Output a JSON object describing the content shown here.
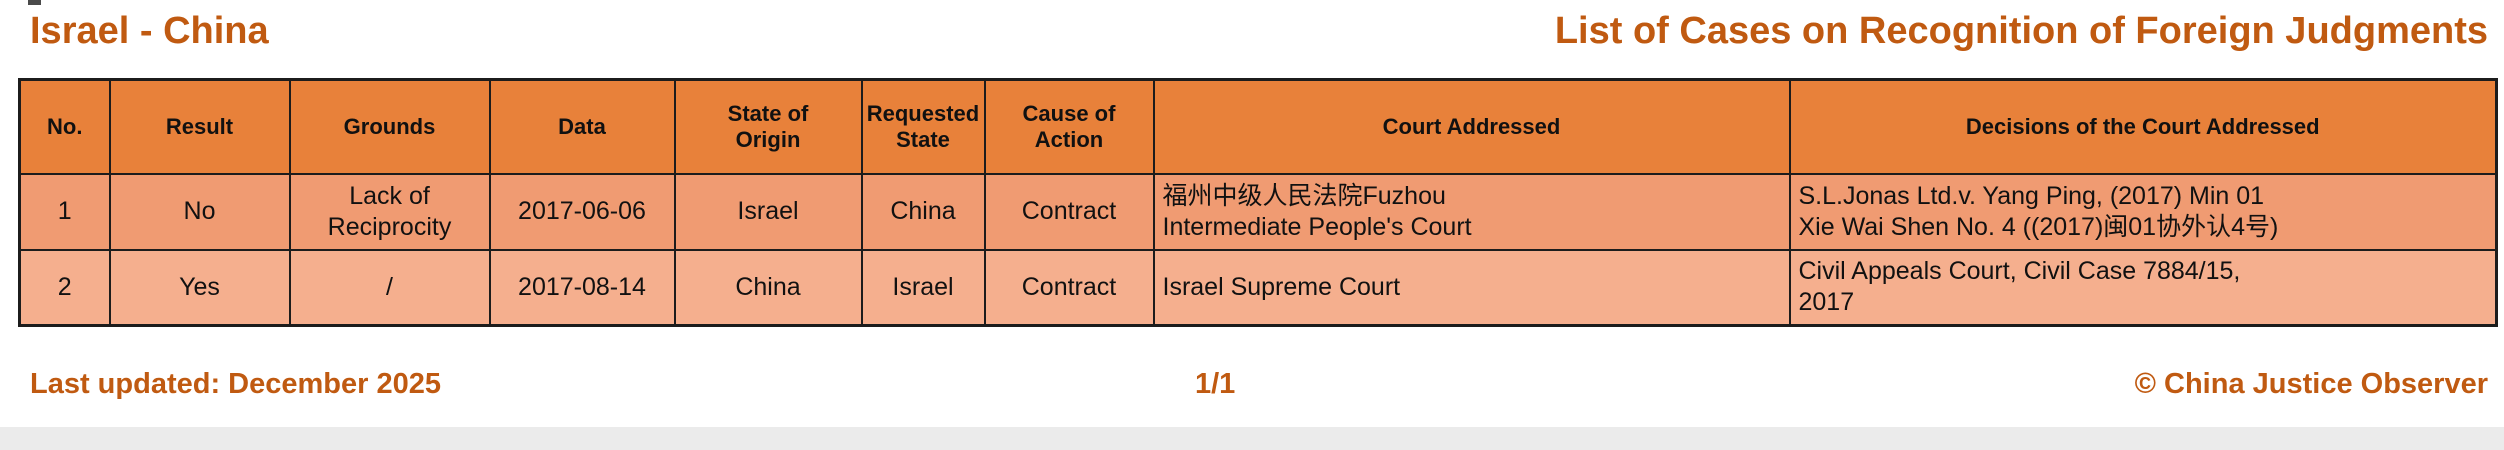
{
  "page": {
    "title_left": "Israel - China",
    "title_right": "List of Cases on Recognition of Foreign Judgments"
  },
  "table": {
    "columns": [
      "No.",
      "Result",
      "Grounds",
      "Data",
      "State of\nOrigin",
      "Requested\nState",
      "Cause of Action",
      "Court Addressed",
      "Decisions of the Court Addressed"
    ],
    "rows": [
      [
        "1",
        "No",
        "Lack of\nReciprocity",
        "2017-06-06",
        "Israel",
        "China",
        "Contract",
        "福州中级人民法院Fuzhou\nIntermediate People's Court",
        "S.L.Jonas Ltd.v. Yang Ping, (2017) Min 01\nXie Wai Shen No. 4 ((2017)闽01协外认4号)"
      ],
      [
        "2",
        "Yes",
        "/",
        "2017-08-14",
        "China",
        "Israel",
        "Contract",
        "Israel Supreme Court",
        "Civil Appeals Court, Civil Case 7884/15,\n2017"
      ]
    ]
  },
  "footer": {
    "last_updated": "Last updated: December 2025",
    "page_number": "1/1",
    "copyright": "© China Justice Observer"
  },
  "colors": {
    "header_bg": "#E8813A",
    "row_bg_1": "#F09B72",
    "row_bg_2": "#F5AF8E",
    "title_text": "#C05A11",
    "border": "#1C1C1C"
  }
}
